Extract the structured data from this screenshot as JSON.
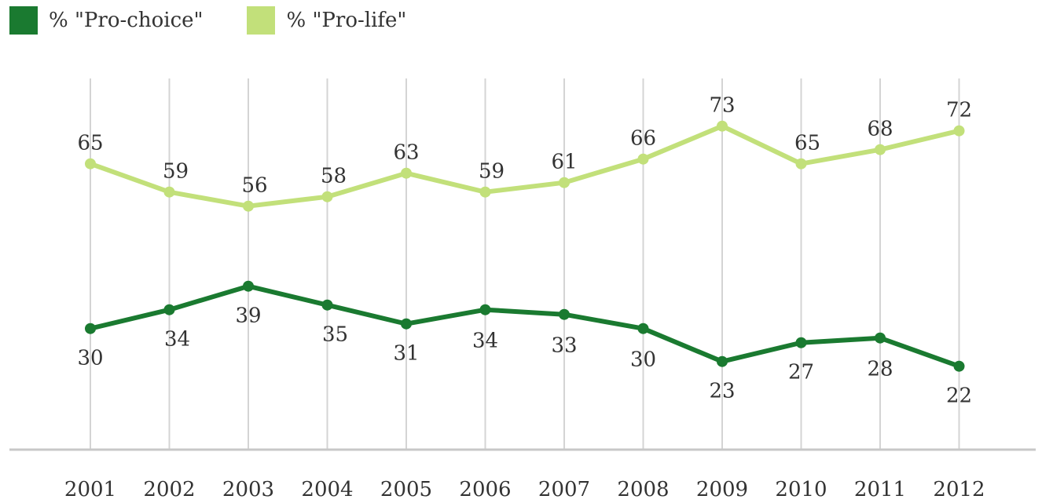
{
  "chart_data": {
    "type": "line",
    "title": "",
    "xlabel": "",
    "ylabel": "",
    "categories": [
      "2001",
      "2002",
      "2003",
      "2004",
      "2005",
      "2006",
      "2007",
      "2008",
      "2009",
      "2010",
      "2011",
      "2012"
    ],
    "ylim": [
      0,
      100
    ],
    "grid": "vertical",
    "legend_position": "top-left",
    "series": [
      {
        "name": "% \"Pro-choice\"",
        "color": "#1a7a30",
        "values": [
          30,
          34,
          39,
          35,
          31,
          34,
          33,
          30,
          23,
          27,
          28,
          22
        ]
      },
      {
        "name": "% \"Pro-life\"",
        "color": "#c2e07a",
        "values": [
          65,
          59,
          56,
          58,
          63,
          59,
          61,
          66,
          73,
          65,
          68,
          72
        ]
      }
    ]
  }
}
